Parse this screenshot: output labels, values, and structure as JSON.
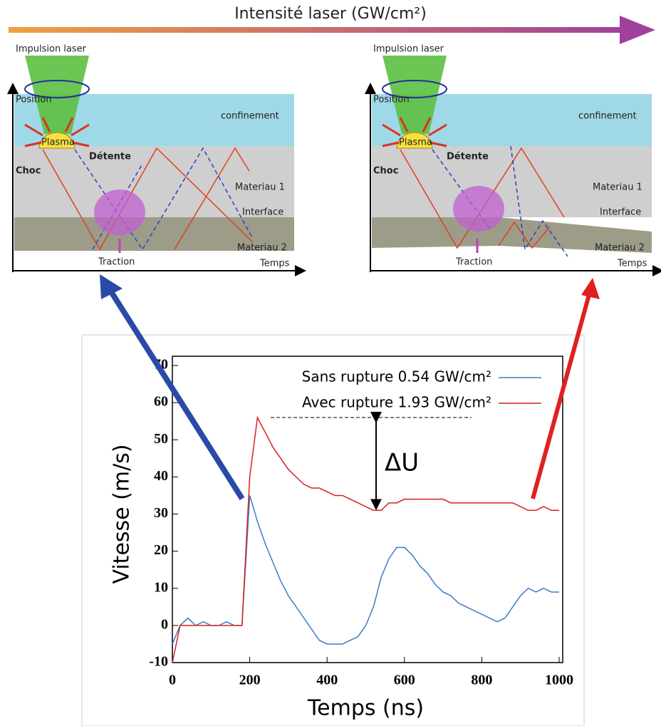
{
  "header": {
    "title": "Intensité laser (GW/cm²)"
  },
  "diagrams": [
    {
      "pulse": "Impulsion laser",
      "position": "Position",
      "confinement": "confinement",
      "plasma": "Plasma",
      "release": "Détente",
      "shock": "Choc",
      "material1": "Materiau 1",
      "interface": "Interface",
      "material2": "Materiau 2",
      "traction": "Traction",
      "time": "Temps"
    },
    {
      "pulse": "Impulsion laser",
      "position": "Position",
      "confinement": "confinement",
      "plasma": "Plasma",
      "release": "Détente",
      "shock": "Choc",
      "material1": "Materiau 1",
      "interface": "Interface",
      "material2": "Materiau 2",
      "traction": "Traction",
      "time": "Temps"
    }
  ],
  "chart_data": {
    "type": "line",
    "x_label": "Temps (ns)",
    "y_label": "Vitesse (m/s)",
    "annotation": "ΔU",
    "x": [
      0,
      20,
      40,
      60,
      80,
      100,
      120,
      140,
      160,
      180,
      200,
      220,
      240,
      260,
      280,
      300,
      320,
      340,
      360,
      380,
      400,
      420,
      440,
      460,
      480,
      500,
      520,
      540,
      560,
      580,
      600,
      620,
      640,
      660,
      680,
      700,
      720,
      740,
      760,
      780,
      800,
      820,
      840,
      860,
      880,
      900,
      920,
      940,
      960,
      980,
      1000
    ],
    "series": [
      {
        "name": "Sans rupture 0.54 GW/cm²",
        "color": "#3a7cc8",
        "values": [
          -5,
          0,
          2,
          0,
          1,
          0,
          0,
          1,
          0,
          0,
          35,
          28,
          22,
          17,
          12,
          8,
          5,
          2,
          -1,
          -4,
          -5,
          -5,
          -5,
          -4,
          -3,
          0,
          5,
          13,
          18,
          21,
          21,
          19,
          16,
          14,
          11,
          9,
          8,
          6,
          5,
          4,
          3,
          2,
          1,
          2,
          5,
          8,
          10,
          9,
          10,
          9,
          9
        ]
      },
      {
        "name": "Avec rupture 1.93 GW/cm²",
        "color": "#d62020",
        "values": [
          -10,
          0,
          0,
          0,
          0,
          0,
          0,
          0,
          0,
          0,
          40,
          56,
          52,
          48,
          45,
          42,
          40,
          38,
          37,
          37,
          36,
          35,
          35,
          34,
          33,
          32,
          31,
          31,
          33,
          33,
          34,
          34,
          34,
          34,
          34,
          34,
          33,
          33,
          33,
          33,
          33,
          33,
          33,
          33,
          33,
          32,
          31,
          31,
          32,
          31,
          31
        ]
      }
    ],
    "xlim": [
      0,
      1000
    ],
    "ylim": [
      -10,
      70
    ],
    "xticks": [
      0,
      200,
      400,
      600,
      800,
      1000
    ],
    "yticks": [
      -10,
      0,
      10,
      20,
      30,
      40,
      50,
      60,
      70
    ],
    "grid": false
  }
}
